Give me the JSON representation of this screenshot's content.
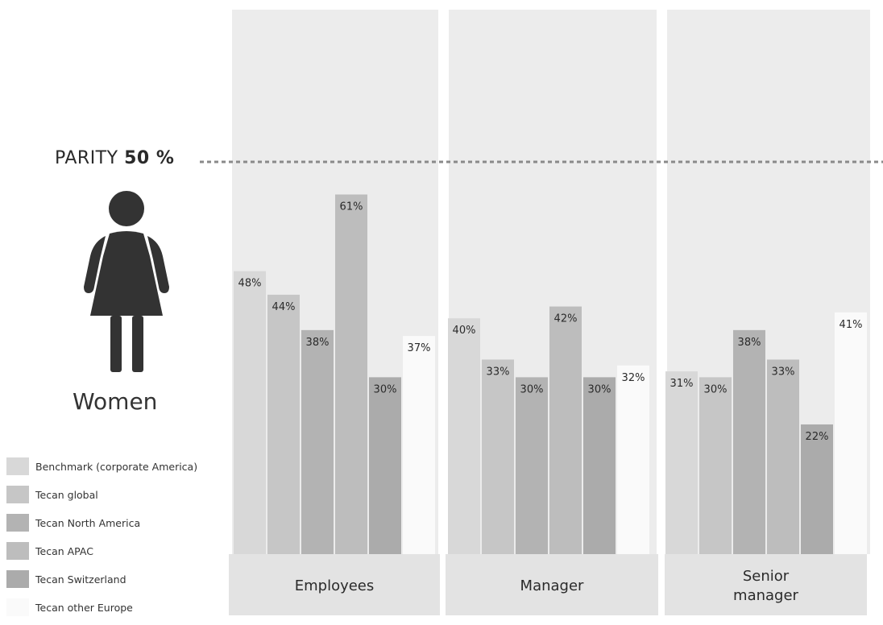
{
  "parity": {
    "prefix": "PARITY",
    "value_text": "50 %",
    "value": 50
  },
  "subject_label": "Women",
  "colors": {
    "panel_bg": "#ececec",
    "category_bg": "#e3e3e3",
    "parity_line": "#8a8a8a",
    "series": [
      "#d8d8d8",
      "#c6c6c6",
      "#b3b3b3",
      "#bdbdbd",
      "#ababab",
      "#fafafa"
    ]
  },
  "icons": {
    "figure": "woman-figure-icon"
  },
  "chart_data": {
    "type": "bar",
    "title": "",
    "xlabel": "",
    "ylabel": "",
    "ylim": [
      0,
      100
    ],
    "categories": [
      "Employees",
      "Manager",
      "Senior manager"
    ],
    "category_lines": [
      [
        "Employees"
      ],
      [
        "Manager"
      ],
      [
        "Senior",
        "manager"
      ]
    ],
    "series": [
      {
        "name": "Benchmark (corporate America)",
        "values": [
          48,
          40,
          31
        ],
        "labels": [
          "48%",
          "40%",
          "31%"
        ]
      },
      {
        "name": "Tecan global",
        "values": [
          44,
          33,
          30
        ],
        "labels": [
          "44%",
          "33%",
          "30%"
        ]
      },
      {
        "name": "Tecan North America",
        "values": [
          38,
          30,
          38
        ],
        "labels": [
          "38%",
          "30%",
          "38%"
        ]
      },
      {
        "name": "Tecan APAC",
        "values": [
          61,
          42,
          33
        ],
        "labels": [
          "61%",
          "42%",
          "33%"
        ]
      },
      {
        "name": "Tecan Switzerland",
        "values": [
          30,
          30,
          22
        ],
        "labels": [
          "30%",
          "30%",
          "22%"
        ]
      },
      {
        "name": "Tecan other Europe",
        "values": [
          37,
          32,
          41
        ],
        "labels": [
          "37%",
          "32%",
          "41%"
        ]
      }
    ],
    "reference_line": {
      "value": 50
    },
    "legend_position": "bottom-left"
  }
}
